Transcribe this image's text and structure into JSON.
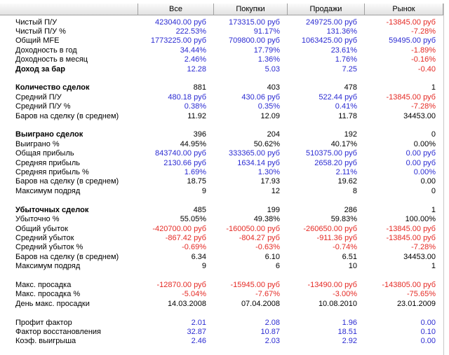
{
  "header": {
    "columns": [
      "Все",
      "Покупки",
      "Продажи",
      "Рынок"
    ]
  },
  "palette": {
    "blue": "#2b2bd2",
    "black": "#000000",
    "negative": "#e52a24"
  },
  "sections": [
    {
      "rows": [
        {
          "label": "Чистый П/У",
          "color": "blue",
          "values": [
            "423040.00 руб",
            "173315.00 руб",
            "249725.00 руб",
            "-13845.00 руб"
          ]
        },
        {
          "label": "Чистый П/У %",
          "color": "blue",
          "values": [
            "222.53%",
            "91.17%",
            "131.36%",
            "-7.28%"
          ]
        },
        {
          "label": "Общий MFE",
          "color": "blue",
          "values": [
            "1773225.00 руб",
            "709800.00 руб",
            "1063425.00 руб",
            "59495.00 руб"
          ]
        },
        {
          "label": "Доходность в год",
          "color": "blue",
          "values": [
            "34.44%",
            "17.79%",
            "23.61%",
            "-1.89%"
          ]
        },
        {
          "label": "Доходность в месяц",
          "color": "blue",
          "values": [
            "2.46%",
            "1.36%",
            "1.76%",
            "-0.16%"
          ]
        },
        {
          "label": "Доход за бар",
          "bold": true,
          "color": "blue",
          "values": [
            "12.28",
            "5.03",
            "7.25",
            "-0.40"
          ]
        }
      ]
    },
    {
      "rows": [
        {
          "label": "Количество сделок",
          "bold": true,
          "color": "black",
          "values": [
            "881",
            "403",
            "478",
            "1"
          ]
        },
        {
          "label": "Средний П/У",
          "color": "blue",
          "values": [
            "480.18 руб",
            "430.06 руб",
            "522.44 руб",
            "-13845.00 руб"
          ]
        },
        {
          "label": "Средний П/У %",
          "color": "blue",
          "values": [
            "0.38%",
            "0.35%",
            "0.41%",
            "-7.28%"
          ]
        },
        {
          "label": "Баров на сделку (в среднем)",
          "color": "black",
          "values": [
            "11.92",
            "12.09",
            "11.78",
            "34453.00"
          ]
        }
      ]
    },
    {
      "rows": [
        {
          "label": "Выиграно сделок",
          "bold": true,
          "color": "black",
          "values": [
            "396",
            "204",
            "192",
            "0"
          ]
        },
        {
          "label": "Выиграно %",
          "color": "black",
          "values": [
            "44.95%",
            "50.62%",
            "40.17%",
            "0.00%"
          ]
        },
        {
          "label": "Общая прибыль",
          "color": "blue",
          "values": [
            "843740.00 руб",
            "333365.00 руб",
            "510375.00 руб",
            "0.00 руб"
          ]
        },
        {
          "label": "Средняя прибыль",
          "color": "blue",
          "values": [
            "2130.66 руб",
            "1634.14 руб",
            "2658.20 руб",
            "0.00 руб"
          ]
        },
        {
          "label": "Средняя прибыль %",
          "color": "blue",
          "values": [
            "1.69%",
            "1.30%",
            "2.11%",
            "0.00%"
          ]
        },
        {
          "label": "Баров на сделку (в среднем)",
          "color": "black",
          "values": [
            "18.75",
            "17.93",
            "19.62",
            "0.00"
          ]
        },
        {
          "label": "Максимум подряд",
          "color": "black",
          "values": [
            "9",
            "12",
            "8",
            "0"
          ]
        }
      ]
    },
    {
      "rows": [
        {
          "label": "Убыточных сделок",
          "bold": true,
          "color": "black",
          "values": [
            "485",
            "199",
            "286",
            "1"
          ]
        },
        {
          "label": "Убыточно %",
          "color": "black",
          "values": [
            "55.05%",
            "49.38%",
            "59.83%",
            "100.00%"
          ]
        },
        {
          "label": "Общий убыток",
          "color": "blue",
          "values": [
            "-420700.00 руб",
            "-160050.00 руб",
            "-260650.00 руб",
            "-13845.00 руб"
          ]
        },
        {
          "label": "Средний убыток",
          "color": "blue",
          "values": [
            "-867.42 руб",
            "-804.27 руб",
            "-911.36 руб",
            "-13845.00 руб"
          ]
        },
        {
          "label": "Средний убыток %",
          "color": "blue",
          "values": [
            "-0.69%",
            "-0.63%",
            "-0.74%",
            "-7.28%"
          ]
        },
        {
          "label": "Баров на сделку (в среднем)",
          "color": "black",
          "values": [
            "6.34",
            "6.10",
            "6.51",
            "34453.00"
          ]
        },
        {
          "label": "Максимум подряд",
          "color": "black",
          "values": [
            "9",
            "6",
            "10",
            "1"
          ]
        }
      ]
    },
    {
      "rows": [
        {
          "label": "Макс. просадка",
          "color": "blue",
          "values": [
            "-12870.00 руб",
            "-15945.00 руб",
            "-13490.00 руб",
            "-143805.00 руб"
          ]
        },
        {
          "label": "Макс. просадка %",
          "color": "blue",
          "values": [
            "-5.04%",
            "-7.67%",
            "-3.00%",
            "-75.65%"
          ]
        },
        {
          "label": "День макс. просадки",
          "color": "black",
          "values": [
            "14.03.2008",
            "07.04.2008",
            "10.08.2010",
            "23.01.2009"
          ]
        }
      ]
    },
    {
      "rows": [
        {
          "label": "Профит фактор",
          "color": "blue",
          "values": [
            "2.01",
            "2.08",
            "1.96",
            "0.00"
          ]
        },
        {
          "label": "Фактор восстановления",
          "color": "blue",
          "values": [
            "32.87",
            "10.87",
            "18.51",
            "0.10"
          ]
        },
        {
          "label": "Коэф. выигрыша",
          "color": "blue",
          "values": [
            "2.46",
            "2.03",
            "2.92",
            "0.00"
          ]
        }
      ]
    }
  ]
}
